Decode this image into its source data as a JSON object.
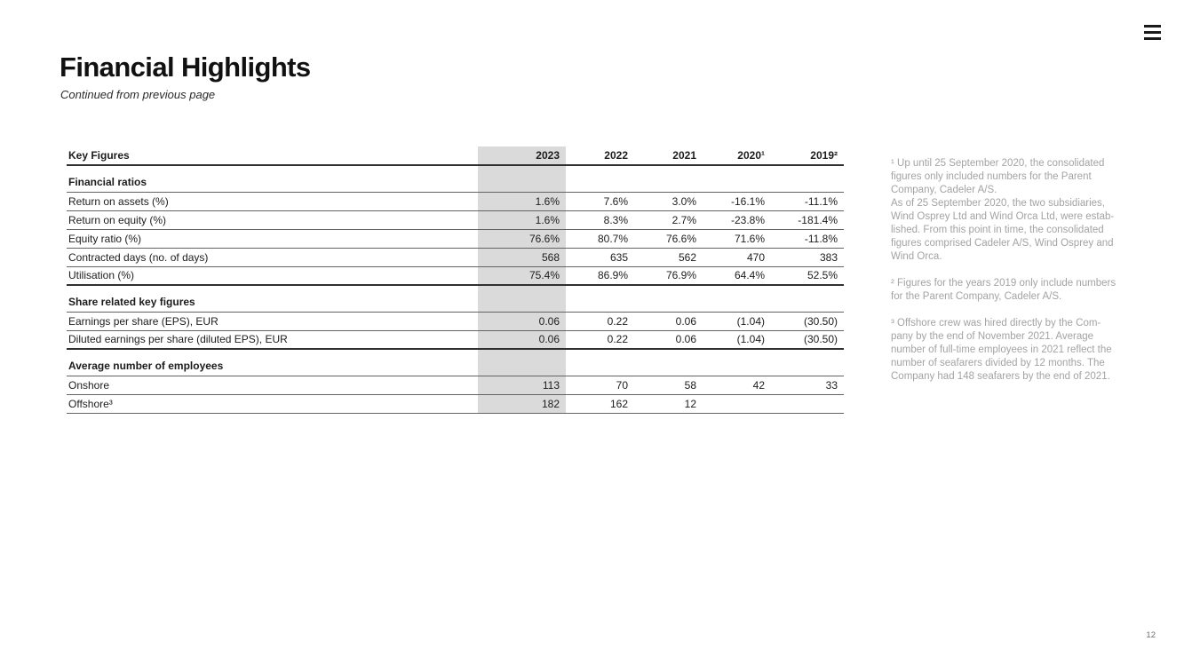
{
  "page": {
    "title": "Financial Highlights",
    "subtitle": "Continued from previous page",
    "page_number": "12"
  },
  "menu": {
    "icon": "hamburger-icon"
  },
  "colors": {
    "highlight_column": "#dadada",
    "heavy_rule": "#303030",
    "light_rule": "#636363",
    "footnote_text": "#a3a3a3"
  },
  "table": {
    "header_label": "Key Figures",
    "years": [
      "2023",
      "2022",
      "2021",
      "2020¹",
      "2019²"
    ],
    "highlight_year": "2023",
    "sections": [
      {
        "title": "Financial ratios",
        "end_border": "thick",
        "rows": [
          {
            "label": "Return on assets (%)",
            "values": [
              "1.6%",
              "7.6%",
              "3.0%",
              "-16.1%",
              "-11.1%"
            ]
          },
          {
            "label": "Return on equity (%)",
            "values": [
              "1.6%",
              "8.3%",
              "2.7%",
              "-23.8%",
              "-181.4%"
            ]
          },
          {
            "label": "Equity ratio (%)",
            "values": [
              "76.6%",
              "80.7%",
              "76.6%",
              "71.6%",
              "-11.8%"
            ]
          },
          {
            "label": "Contracted days (no. of days)",
            "values": [
              "568",
              "635",
              "562",
              "470",
              "383"
            ]
          },
          {
            "label": "Utilisation (%)",
            "values": [
              "75.4%",
              "86.9%",
              "76.9%",
              "64.4%",
              "52.5%"
            ]
          }
        ]
      },
      {
        "title": "Share related key figures",
        "end_border": "thick",
        "rows": [
          {
            "label": "Earnings per share (EPS), EUR",
            "values": [
              "0.06",
              "0.22",
              "0.06",
              "(1.04)",
              "(30.50)"
            ]
          },
          {
            "label": "Diluted earnings per share (diluted EPS), EUR",
            "values": [
              "0.06",
              "0.22",
              "0.06",
              "(1.04)",
              "(30.50)"
            ]
          }
        ]
      },
      {
        "title": "Average number of employees",
        "end_border": "thin",
        "rows": [
          {
            "label": "Onshore",
            "values": [
              "113",
              "70",
              "58",
              "42",
              "33"
            ]
          },
          {
            "label": "Offshore³",
            "values": [
              "182",
              "162",
              "12",
              "",
              ""
            ]
          }
        ]
      }
    ]
  },
  "footnotes": [
    {
      "text": "¹ Up until 25 September 2020, the consolidated\nfigures only included numbers for the Parent\nCompany, Cadeler A/S.\nAs of 25 September 2020, the two subsidiaries,\nWind Osprey Ltd and Wind Orca Ltd, were estab-\nlished. From this point in time, the consolidated\nfigures comprised Cadeler A/S, Wind Osprey and\nWind Orca."
    },
    {
      "text": "² Figures for the years 2019 only include numbers\nfor the Parent Company, Cadeler A/S."
    },
    {
      "text": "³ Offshore crew was hired directly by the Com-\npany by the end of November 2021. Average\nnumber of full-time employees in 2021 reflect the\nnumber of seafarers divided by 12 months. The\nCompany had 148 seafarers by the end of 2021."
    }
  ]
}
